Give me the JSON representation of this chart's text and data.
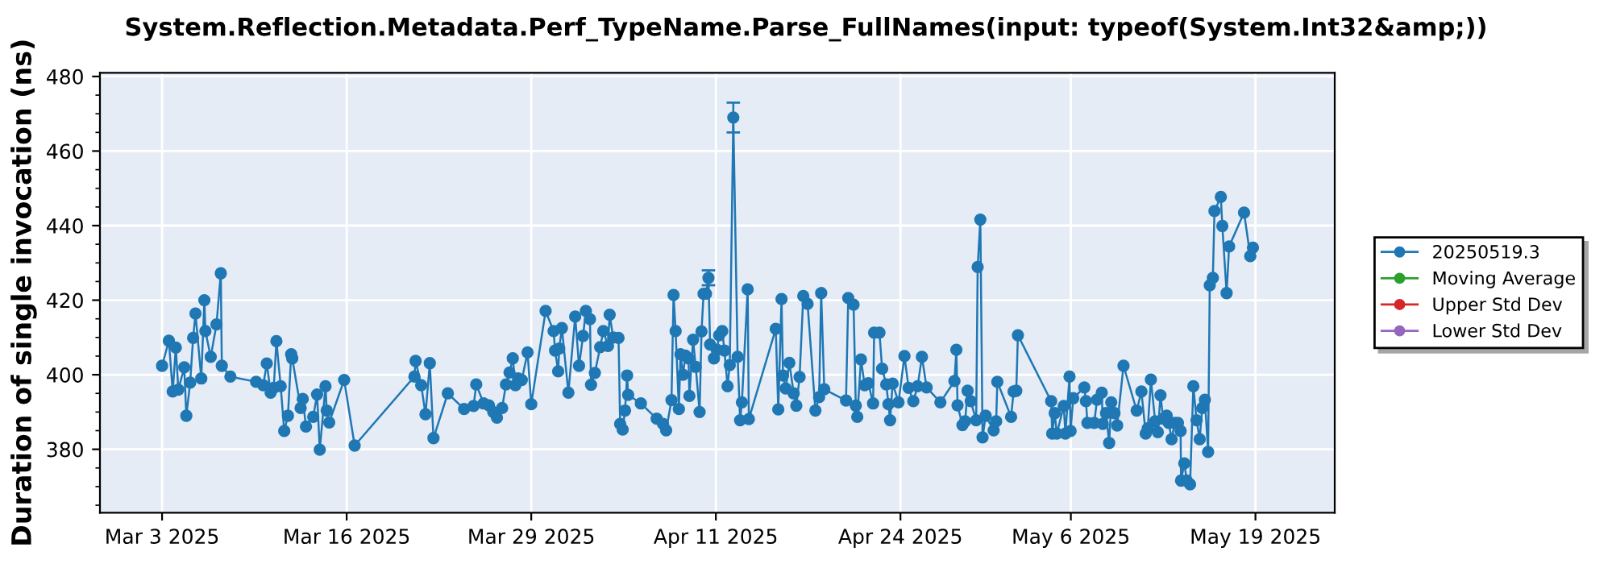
{
  "chart_data": {
    "type": "line",
    "title": "System.Reflection.Metadata.Perf_TypeName.Parse_FullNames(input: typeof(System.Int32&amp;))",
    "ylabel": "Duration of single invocation (ns)",
    "xlim": [
      "2025-02-26T15:00",
      "2025-05-24T14:00"
    ],
    "xticks": [
      {
        "value": "2025-03-03T00:00",
        "label": "Mar 3 2025"
      },
      {
        "value": "2025-03-16",
        "label": "Mar 16 2025"
      },
      {
        "value": "2025-03-29",
        "label": "Mar 29 2025"
      },
      {
        "value": "2025-04-11",
        "label": "Apr 11 2025"
      },
      {
        "value": "2025-04-24",
        "label": "Apr 24 2025"
      },
      {
        "value": "2025-05-06",
        "label": "May 6 2025"
      },
      {
        "value": "2025-05-19T00:00",
        "label": "May 19 2025"
      }
    ],
    "ylim": [
      363,
      481
    ],
    "yticks": [
      380,
      400,
      420,
      440,
      460,
      480
    ],
    "grid": true,
    "legend": "right",
    "marker": "circle",
    "line_style": "solid",
    "series": [
      {
        "name": "20250519.3",
        "color": "#1f77b4",
        "x": [
          "2025-03-03T00:00",
          "2025-03-03T11:30",
          "2025-03-03T18:00",
          "2025-03-03T23:15",
          "2025-03-04T03:30",
          "2025-03-04T13:30",
          "2025-03-04T17:00",
          "2025-03-04T23:30",
          "2025-03-05T04:30",
          "2025-03-05T08:30",
          "2025-03-05T18:15",
          "2025-03-05T23:30",
          "2025-03-06T01:15",
          "2025-03-06T10:15",
          "2025-03-06T20:00",
          "2025-03-07T03:15",
          "2025-03-07T05:00",
          "2025-03-07T19:30",
          "2025-03-09T15:00",
          "2025-03-10T03:00",
          "2025-03-10T09:00",
          "2025-03-10T15:30",
          "2025-03-10T20:45",
          "2025-03-11T01:15",
          "2025-03-11T08:30",
          "2025-03-11T14:30",
          "2025-03-11T20:45",
          "2025-03-12T02:15",
          "2025-03-12T04:00",
          "2025-03-12T18:15",
          "2025-03-12T21:45",
          "2025-03-13T03:15",
          "2025-03-13T15:30",
          "2025-03-13T22:00",
          "2025-03-14T02:30",
          "2025-03-14T12:15",
          "2025-03-14T14:15",
          "2025-03-14T18:30",
          "2025-03-15T19:45",
          "2025-03-16T13:30",
          "2025-03-20T18:30",
          "2025-03-20T20:30",
          "2025-03-21T06:00",
          "2025-03-21T13:15",
          "2025-03-21T20:30",
          "2025-03-22T02:45",
          "2025-03-23T03:00",
          "2025-03-24T06:30",
          "2025-03-24T22:30",
          "2025-03-25T03:00",
          "2025-03-25T15:30",
          "2025-03-26T00:30",
          "2025-03-26T07:45",
          "2025-03-26T14:00",
          "2025-03-26T22:45",
          "2025-03-27T05:15",
          "2025-03-27T11:15",
          "2025-03-27T16:45",
          "2025-03-27T21:15",
          "2025-03-28T01:45",
          "2025-03-28T08:00",
          "2025-03-28T17:45",
          "2025-03-29T00:00",
          "2025-03-30T00:15",
          "2025-03-30T13:45",
          "2025-03-30T16:15",
          "2025-03-30T21:30",
          "2025-03-30T23:15",
          "2025-03-31T03:45",
          "2025-03-31T14:45",
          "2025-04-01T02:15",
          "2025-04-01T08:45",
          "2025-04-01T15:30",
          "2025-04-01T20:15",
          "2025-04-02T03:15",
          "2025-04-02T05:00",
          "2025-04-02T11:30",
          "2025-04-02T20:30",
          "2025-04-03T01:45",
          "2025-04-03T09:45",
          "2025-04-03T12:30",
          "2025-04-03T18:30",
          "2025-04-04T03:30",
          "2025-04-04T06:15",
          "2025-04-04T10:30",
          "2025-04-04T14:30",
          "2025-04-04T18:00",
          "2025-04-04T19:45",
          "2025-04-05T17:15",
          "2025-04-06T20:00",
          "2025-04-07T06:45",
          "2025-04-07T12:00",
          "2025-04-07T21:00",
          "2025-04-08T00:30",
          "2025-04-08T04:00",
          "2025-04-08T09:30",
          "2025-04-08T12:15",
          "2025-04-08T16:30",
          "2025-04-08T20:30",
          "2025-04-09T01:45",
          "2025-04-09T03:15",
          "2025-04-09T09:30",
          "2025-04-09T14:00",
          "2025-04-09T20:30",
          "2025-04-09T23:45",
          "2025-04-10T03:15",
          "2025-04-10T07:15",
          "2025-04-10T11:30",
          "2025-04-10T14:15",
          "2025-04-10T20:45",
          "2025-04-11T02:00",
          "2025-04-11T05:30",
          "2025-04-11T10:45",
          "2025-04-11T14:30",
          "2025-04-11T19:45",
          "2025-04-11T23:30",
          "2025-04-12T05:30",
          "2025-04-12T12:45",
          "2025-04-12T17:00",
          "2025-04-12T20:00",
          "2025-04-13T05:45",
          "2025-04-13T07:45",
          "2025-04-15T05:15",
          "2025-04-15T09:30",
          "2025-04-15T15:00",
          "2025-04-15T17:30",
          "2025-04-15T22:00",
          "2025-04-16T04:15",
          "2025-04-16T11:30",
          "2025-04-16T16:00",
          "2025-04-16T21:30",
          "2025-04-17T03:45",
          "2025-04-17T11:00",
          "2025-04-18T00:15",
          "2025-04-18T06:30",
          "2025-04-18T10:00",
          "2025-04-18T15:15",
          "2025-04-20T04:00",
          "2025-04-20T07:45",
          "2025-04-20T16:45",
          "2025-04-20T20:30",
          "2025-04-20T23:00",
          "2025-04-21T05:15",
          "2025-04-21T11:30",
          "2025-04-21T17:45",
          "2025-04-22T01:45",
          "2025-04-22T03:30",
          "2025-04-22T12:30",
          "2025-04-22T17:00",
          "2025-04-23T00:00",
          "2025-04-23T03:45",
          "2025-04-23T06:30",
          "2025-04-23T10:45",
          "2025-04-23T20:45",
          "2025-04-24T06:45",
          "2025-04-24T13:45",
          "2025-04-24T21:45",
          "2025-04-25T05:00",
          "2025-04-25T12:15",
          "2025-04-25T20:15",
          "2025-04-26T19:30",
          "2025-04-27T19:15",
          "2025-04-27T22:30",
          "2025-04-28T00:30",
          "2025-04-28T08:45",
          "2025-04-28T13:15",
          "2025-04-28T17:30",
          "2025-04-28T22:45",
          "2025-04-29T08:00",
          "2025-04-29T10:30",
          "2025-04-29T15:00",
          "2025-04-29T18:45",
          "2025-04-30T00:00",
          "2025-04-30T13:30",
          "2025-04-30T17:45",
          "2025-04-30T19:45",
          "2025-05-01T19:00",
          "2025-05-01T23:15",
          "2025-05-02T03:45",
          "2025-05-02T06:30",
          "2025-05-04T14:45",
          "2025-05-04T16:30",
          "2025-05-04T20:45",
          "2025-05-05T00:15",
          "2025-05-05T12:00",
          "2025-05-05T14:45",
          "2025-05-05T21:45",
          "2025-05-05T23:30",
          "2025-05-06T04:00",
          "2025-05-06T22:45",
          "2025-05-07T01:30",
          "2025-05-07T04:00",
          "2025-05-07T15:30",
          "2025-05-07T20:15",
          "2025-05-08T04:15",
          "2025-05-08T06:00",
          "2025-05-08T11:30",
          "2025-05-08T16:45",
          "2025-05-08T20:15",
          "2025-05-09T01:45",
          "2025-05-09T06:15",
          "2025-05-09T17:00",
          "2025-05-10T15:15",
          "2025-05-10T23:15",
          "2025-05-11T06:30",
          "2025-05-11T10:00",
          "2025-05-11T15:15",
          "2025-05-11T22:30",
          "2025-05-12T03:00",
          "2025-05-12T07:30",
          "2025-05-12T12:00",
          "2025-05-12T18:00",
          "2025-05-12T21:30",
          "2025-05-13T02:15",
          "2025-05-13T07:30",
          "2025-05-13T13:00",
          "2025-05-13T17:30",
          "2025-05-13T18:15",
          "2025-05-13T23:45",
          "2025-05-14T04:00",
          "2025-05-14T09:30",
          "2025-05-14T15:00",
          "2025-05-14T20:30",
          "2025-05-15T01:45",
          "2025-05-15T06:00",
          "2025-05-15T10:30",
          "2025-05-15T16:00",
          "2025-05-15T18:45",
          "2025-05-16T00:00",
          "2025-05-16T02:45",
          "2025-05-16T13:30",
          "2025-05-16T16:00",
          "2025-05-16T23:15",
          "2025-05-17T03:30",
          "2025-05-18T04:45",
          "2025-05-18T15:15",
          "2025-05-18T19:45"
        ],
        "values": [
          402.4,
          409.1,
          395.5,
          407.3,
          396,
          402,
          389,
          397.9,
          409.9,
          416.4,
          399,
          420,
          411.7,
          404.8,
          413.5,
          427.2,
          402.4,
          399.5,
          398.1,
          397.2,
          403,
          395.2,
          396.5,
          409,
          396.9,
          384.9,
          389,
          405.5,
          404.4,
          391.1,
          393.5,
          386.1,
          388.7,
          394.7,
          379.9,
          396.9,
          390.4,
          387.2,
          398.6,
          381,
          399.5,
          403.7,
          397.2,
          389.4,
          403.1,
          383,
          395,
          390.8,
          391.6,
          397.4,
          392.3,
          391.8,
          390,
          388.5,
          391.1,
          397.4,
          400.6,
          404.4,
          397.2,
          399,
          398.6,
          406,
          392.1,
          417.1,
          411.7,
          406.5,
          400.9,
          407,
          412.5,
          395.2,
          415.6,
          402.4,
          410.4,
          417.1,
          414.9,
          397.3,
          400.5,
          407.4,
          411.7,
          407.7,
          416.1,
          410,
          409.9,
          386.8,
          385.3,
          390.4,
          399.8,
          394.6,
          392.3,
          388.2,
          386.8,
          385.1,
          393.2,
          421.4,
          411.7,
          390.8,
          405.5,
          400,
          405.1,
          404.4,
          394.3,
          409.4,
          402.1,
          390,
          411.6,
          421.7,
          421.7,
          426,
          408.1,
          404.4,
          406.7,
          410.6,
          411.7,
          406.5,
          396.9,
          402.6,
          469,
          404.8,
          387.8,
          392.6,
          422.9,
          388.1,
          412.3,
          390.7,
          420.3,
          399.8,
          396.3,
          403.2,
          395,
          391.7,
          399.4,
          421.1,
          419,
          390.4,
          394,
          421.9,
          396.1,
          393.1,
          420.6,
          418.8,
          391.7,
          388.7,
          404.1,
          397.2,
          397.7,
          392.3,
          411.3,
          411.3,
          401.6,
          397.4,
          392.1,
          387.8,
          397.6,
          392.6,
          405,
          396.5,
          392.9,
          396.9,
          404.8,
          396.6,
          392.6,
          398.3,
          406.7,
          391.8,
          386.5,
          387.5,
          395.7,
          392.9,
          387.8,
          428.9,
          441.6,
          383.2,
          389,
          385.1,
          387.5,
          398.1,
          388.7,
          395.5,
          395.7,
          410.6,
          392.9,
          384.2,
          389.7,
          384.2,
          391.6,
          384.2,
          399.5,
          384.9,
          393.7,
          396.6,
          392.9,
          387.1,
          387.1,
          393.3,
          395.2,
          386.8,
          389.7,
          381.7,
          392.6,
          389.7,
          386.4,
          402.4,
          390.4,
          395.5,
          384.2,
          385.6,
          398.7,
          387.5,
          384.6,
          394.5,
          388.2,
          389,
          387.1,
          382.7,
          387.1,
          387.1,
          384.9,
          371.6,
          376.2,
          371.6,
          370.6,
          396.9,
          387.8,
          382.7,
          391.1,
          393.3,
          379.3,
          424,
          426,
          443.9,
          447.7,
          439.9,
          421.9,
          434.4,
          443.5,
          431.8,
          434.1
        ],
        "errors": [
          null,
          null,
          null,
          null,
          null,
          null,
          null,
          null,
          null,
          null,
          null,
          null,
          null,
          null,
          null,
          null,
          null,
          null,
          null,
          null,
          null,
          null,
          null,
          null,
          null,
          null,
          null,
          null,
          null,
          null,
          null,
          null,
          null,
          null,
          null,
          null,
          null,
          null,
          null,
          null,
          null,
          null,
          null,
          null,
          null,
          null,
          null,
          null,
          null,
          null,
          null,
          null,
          null,
          null,
          null,
          null,
          null,
          null,
          null,
          null,
          null,
          null,
          null,
          null,
          null,
          null,
          null,
          null,
          null,
          null,
          null,
          null,
          null,
          null,
          null,
          null,
          null,
          null,
          null,
          null,
          null,
          null,
          null,
          null,
          null,
          null,
          null,
          null,
          null,
          null,
          null,
          null,
          null,
          null,
          null,
          null,
          null,
          null,
          null,
          null,
          null,
          null,
          null,
          null,
          null,
          null,
          null,
          [
            424,
            428
          ],
          null,
          null,
          null,
          null,
          null,
          null,
          null,
          null,
          [
            465,
            473
          ],
          null,
          null,
          null,
          null,
          null,
          null,
          null,
          null,
          null,
          null,
          null,
          null,
          null,
          null,
          null,
          null,
          null,
          null,
          null,
          null,
          null,
          null,
          null,
          null,
          null,
          null,
          null,
          null,
          null,
          null,
          null,
          null,
          null,
          null,
          null,
          null,
          null,
          null,
          null,
          null,
          null,
          null,
          null,
          null,
          null,
          null,
          null,
          null,
          null,
          null,
          null,
          null,
          null,
          null,
          null,
          null,
          null,
          null,
          null,
          null,
          null,
          null,
          null,
          null,
          null,
          null,
          null,
          null,
          null,
          null,
          null,
          null,
          null,
          null,
          null,
          null,
          null,
          null,
          null,
          null,
          null,
          null,
          null,
          null,
          null,
          null,
          null,
          null,
          null,
          null,
          null,
          null,
          null,
          null,
          null,
          null,
          null,
          null,
          null,
          null,
          null,
          null,
          null,
          null,
          null,
          null,
          null,
          null,
          null,
          null,
          null,
          null,
          null,
          null,
          null,
          null,
          null,
          null,
          null,
          null
        ]
      },
      {
        "name": "Moving Average",
        "color": "#2ca02c"
      },
      {
        "name": "Upper Std Dev",
        "color": "#d62728"
      },
      {
        "name": "Lower Std Dev",
        "color": "#9467bd"
      }
    ]
  }
}
